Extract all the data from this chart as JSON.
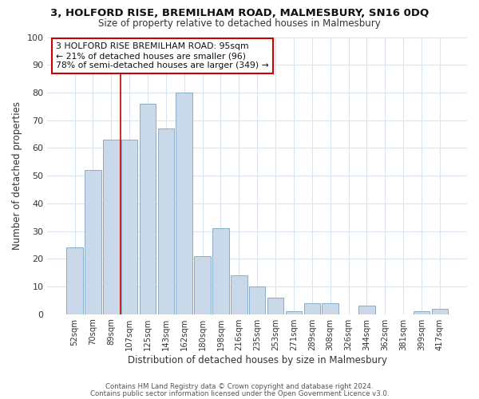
{
  "title1": "3, HOLFORD RISE, BREMILHAM ROAD, MALMESBURY, SN16 0DQ",
  "title2": "Size of property relative to detached houses in Malmesbury",
  "xlabel": "Distribution of detached houses by size in Malmesbury",
  "ylabel": "Number of detached properties",
  "bar_labels": [
    "52sqm",
    "70sqm",
    "89sqm",
    "107sqm",
    "125sqm",
    "143sqm",
    "162sqm",
    "180sqm",
    "198sqm",
    "216sqm",
    "235sqm",
    "253sqm",
    "271sqm",
    "289sqm",
    "308sqm",
    "326sqm",
    "344sqm",
    "362sqm",
    "381sqm",
    "399sqm",
    "417sqm"
  ],
  "bar_heights": [
    24,
    52,
    63,
    63,
    76,
    67,
    80,
    21,
    31,
    14,
    10,
    6,
    1,
    4,
    4,
    0,
    3,
    0,
    0,
    1,
    2
  ],
  "bar_color": "#c9d9ea",
  "bar_edge_color": "#8aaec8",
  "property_line_x": 2.5,
  "property_line_color": "#cc0000",
  "annotation_text": "3 HOLFORD RISE BREMILHAM ROAD: 95sqm\n← 21% of detached houses are smaller (96)\n78% of semi-detached houses are larger (349) →",
  "annotation_box_color": "#ffffff",
  "annotation_box_edge": "#cc0000",
  "ylim": [
    0,
    100
  ],
  "footer1": "Contains HM Land Registry data © Crown copyright and database right 2024.",
  "footer2": "Contains public sector information licensed under the Open Government Licence v3.0.",
  "bg_color": "#ffffff",
  "grid_color": "#d8e4f0"
}
